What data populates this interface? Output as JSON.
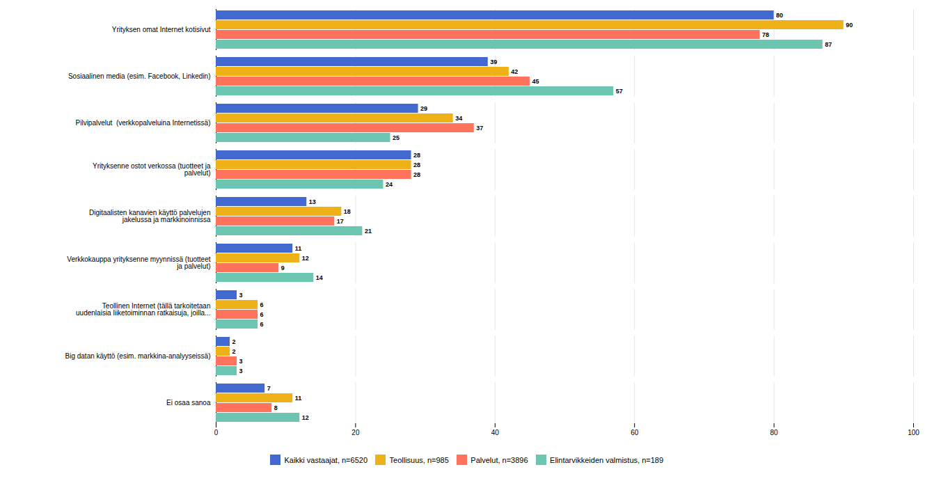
{
  "chart_data": {
    "type": "bar",
    "orientation": "horizontal",
    "categories": [
      "Yrityksen omat Internet kotisivut",
      "Sosiaalinen media (esim. Facebook, Linkedin)",
      "Pilvipalvelut  (verkkopalveluina Internetissä)",
      "Yrityksenne ostot verkossa (tuotteet ja\npalvelut)",
      "Digitaalisten kanavien käyttö palvelujen\njakelussa ja markkinoinnissa",
      "Verkkokauppa yrityksenne myynnissä (tuotteet\nja palvelut)",
      "Teollinen Internet (tällä tarkoitetaan\nuudenlaisia liiketoiminnan ratkaisuja, joilla...",
      "Big datan käyttö (esim. markkina-analyyseissä)",
      "Ei osaa sanoa"
    ],
    "series": [
      {
        "name": "Kaikki vastaajat, n=6520",
        "values": [
          80,
          39,
          29,
          28,
          13,
          11,
          3,
          2,
          7
        ]
      },
      {
        "name": "Teollisuus, n=985",
        "values": [
          90,
          42,
          34,
          28,
          18,
          12,
          6,
          2,
          11
        ]
      },
      {
        "name": "Palvelut, n=3896",
        "values": [
          78,
          45,
          37,
          28,
          17,
          9,
          6,
          3,
          8
        ]
      },
      {
        "name": "Elintarvikkeiden valmistus, n=189",
        "values": [
          87,
          57,
          25,
          24,
          21,
          14,
          6,
          3,
          12
        ]
      }
    ],
    "xlim": [
      0,
      100
    ],
    "xticks": [
      0,
      20,
      40,
      60,
      80,
      100
    ],
    "grid": true,
    "data_labels": true,
    "legend": "lower center"
  }
}
